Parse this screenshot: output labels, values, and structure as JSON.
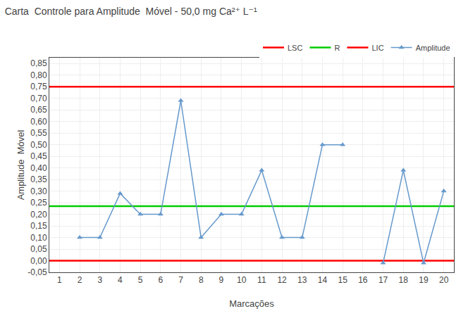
{
  "chart_data": {
    "type": "line",
    "title": "Carta  Controle para Amplitude  Móvel - 50,0 mg Ca²⁺ L⁻¹",
    "xlabel": "Marcações",
    "ylabel": "Amplitude  Móvel",
    "x": [
      1,
      2,
      3,
      4,
      5,
      6,
      7,
      8,
      9,
      10,
      11,
      12,
      13,
      14,
      15,
      16,
      17,
      18,
      19,
      20
    ],
    "series": [
      {
        "name": "LSC",
        "type": "hline",
        "color": "#FF0000",
        "value": 0.75
      },
      {
        "name": "R",
        "type": "hline",
        "color": "#00CC00",
        "value": 0.235
      },
      {
        "name": "LIC",
        "type": "hline",
        "color": "#FF0000",
        "value": 0.0
      },
      {
        "name": "Amplitude",
        "type": "line",
        "color": "#6699CC",
        "marker": "triangle",
        "values": [
          null,
          0.1,
          0.1,
          0.29,
          0.2,
          0.2,
          0.69,
          0.1,
          0.2,
          0.2,
          0.39,
          0.1,
          0.1,
          0.5,
          0.5,
          null,
          -0.01,
          0.39,
          -0.01,
          0.3
        ]
      }
    ],
    "xlim": [
      0.5,
      20.5
    ],
    "xticks": [
      1,
      2,
      3,
      4,
      5,
      6,
      7,
      8,
      9,
      10,
      11,
      12,
      13,
      14,
      15,
      16,
      17,
      18,
      19,
      20
    ],
    "ylim": [
      -0.05,
      0.875
    ],
    "yticks": [
      {
        "value": -0.05,
        "label": "-0,05"
      },
      {
        "value": 0.0,
        "label": "0,00"
      },
      {
        "value": 0.05,
        "label": "0,05"
      },
      {
        "value": 0.1,
        "label": "0,10"
      },
      {
        "value": 0.15,
        "label": "0,15"
      },
      {
        "value": 0.2,
        "label": "0,20"
      },
      {
        "value": 0.25,
        "label": "0,25"
      },
      {
        "value": 0.3,
        "label": "0,30"
      },
      {
        "value": 0.35,
        "label": "0,35"
      },
      {
        "value": 0.4,
        "label": "0,40"
      },
      {
        "value": 0.45,
        "label": "0,45"
      },
      {
        "value": 0.5,
        "label": "0,50"
      },
      {
        "value": 0.55,
        "label": "0,55"
      },
      {
        "value": 0.6,
        "label": "0,60"
      },
      {
        "value": 0.65,
        "label": "0,65"
      },
      {
        "value": 0.7,
        "label": "0,70"
      },
      {
        "value": 0.75,
        "label": "0,75"
      },
      {
        "value": 0.8,
        "label": "0,80"
      },
      {
        "value": 0.85,
        "label": "0,85"
      }
    ],
    "grid": true,
    "legend": "upper right"
  }
}
